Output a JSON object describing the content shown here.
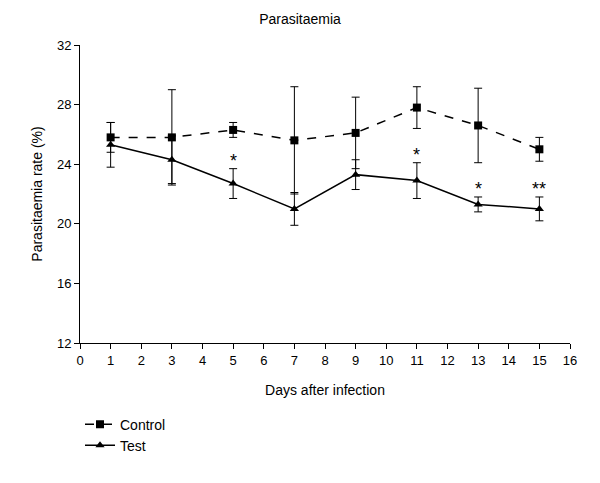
{
  "chart_data": {
    "type": "line",
    "title": "Parasitaemia",
    "x_label": "Days after infection",
    "y_label": "Parasitaemia rate (%)",
    "xlim": [
      0,
      16
    ],
    "xticks": [
      0,
      1,
      2,
      3,
      4,
      5,
      6,
      7,
      8,
      9,
      10,
      11,
      12,
      13,
      14,
      15,
      16
    ],
    "ylim": [
      12,
      32
    ],
    "yticks": [
      12,
      16,
      20,
      24,
      28,
      32
    ],
    "grid": false,
    "legend": "bottom left",
    "series": [
      {
        "name": "Control",
        "color": "#000000",
        "marker": "square",
        "line_style": "dashed",
        "x": [
          1,
          3,
          5,
          7,
          9,
          11,
          13,
          15
        ],
        "values": [
          25.8,
          25.8,
          26.3,
          25.6,
          26.1,
          27.8,
          26.6,
          25.0
        ],
        "error": [
          1.0,
          3.2,
          0.5,
          3.6,
          2.4,
          1.4,
          2.5,
          0.8
        ]
      },
      {
        "name": "Test",
        "color": "#000000",
        "marker": "triangle",
        "line_style": "solid",
        "x": [
          1,
          3,
          5,
          7,
          9,
          11,
          13,
          15
        ],
        "values": [
          25.3,
          24.3,
          22.7,
          21.0,
          23.3,
          22.9,
          21.3,
          21.0
        ],
        "error": [
          1.5,
          1.6,
          1.0,
          1.1,
          1.0,
          1.2,
          0.5,
          0.8
        ]
      }
    ],
    "annotations": [
      {
        "x": 5,
        "text": "*",
        "series": "Test"
      },
      {
        "x": 11,
        "text": "*",
        "series": "Test"
      },
      {
        "x": 13,
        "text": "*",
        "series": "Test"
      },
      {
        "x": 15,
        "text": "**",
        "series": "Test"
      }
    ]
  }
}
